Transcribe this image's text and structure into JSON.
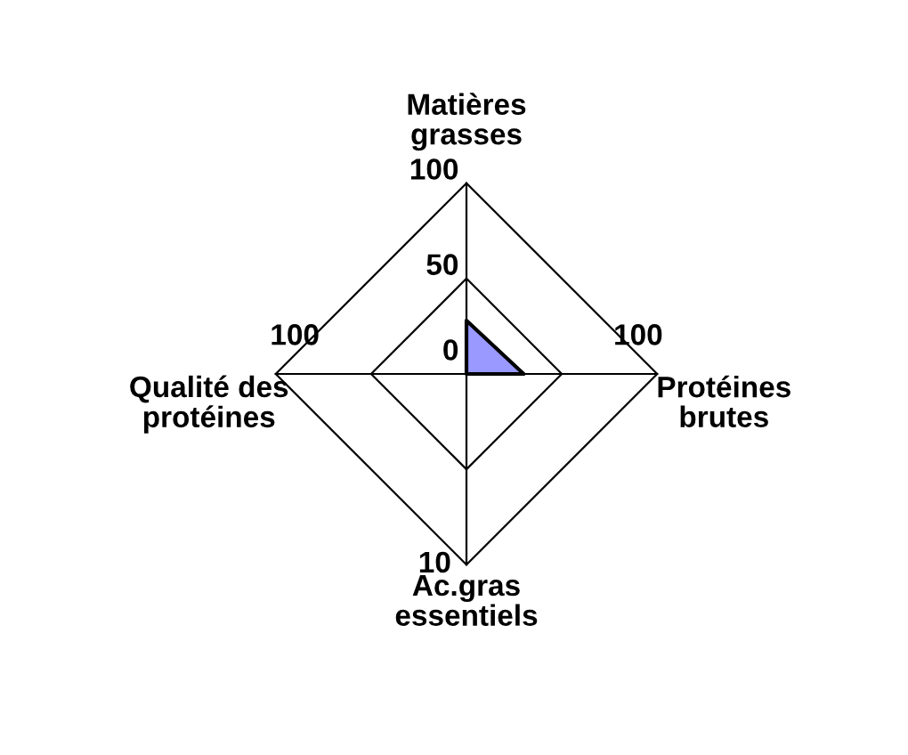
{
  "chart_data": {
    "type": "radar",
    "categories": [
      "Matières\ngrasses",
      "Protéines\nbrutes",
      "Ac.gras\nessentiels",
      "Qualité des\nprotéines"
    ],
    "series": [
      {
        "color": "#9999ff",
        "values": [
          28,
          30,
          0,
          0
        ]
      }
    ],
    "ylim": [
      0,
      100
    ],
    "yticks": [
      0,
      50,
      100
    ],
    "annotations": [
      "100",
      "10",
      "100"
    ]
  }
}
